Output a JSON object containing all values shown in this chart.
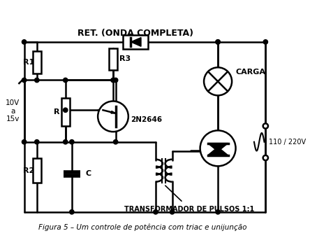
{
  "title": "Figura 5 – Um controle de potência com triac e unijunção",
  "background_color": "#ffffff",
  "line_color": "#000000",
  "top_label": "RET. (ONDA COMPLETA)",
  "bottom_label": "TRANSFORMADOR DE PULSOS 1:1",
  "label_R1": "R1",
  "label_R2": "R2",
  "label_R": "R",
  "label_R3": "R3",
  "label_C": "C",
  "label_transistor": "2N2646",
  "label_voltage": "10V\na\n15v",
  "label_voltage_right": "110 / 220V",
  "label_carga": "CARGA",
  "fig_width": 4.44,
  "fig_height": 3.6,
  "dpi": 100
}
